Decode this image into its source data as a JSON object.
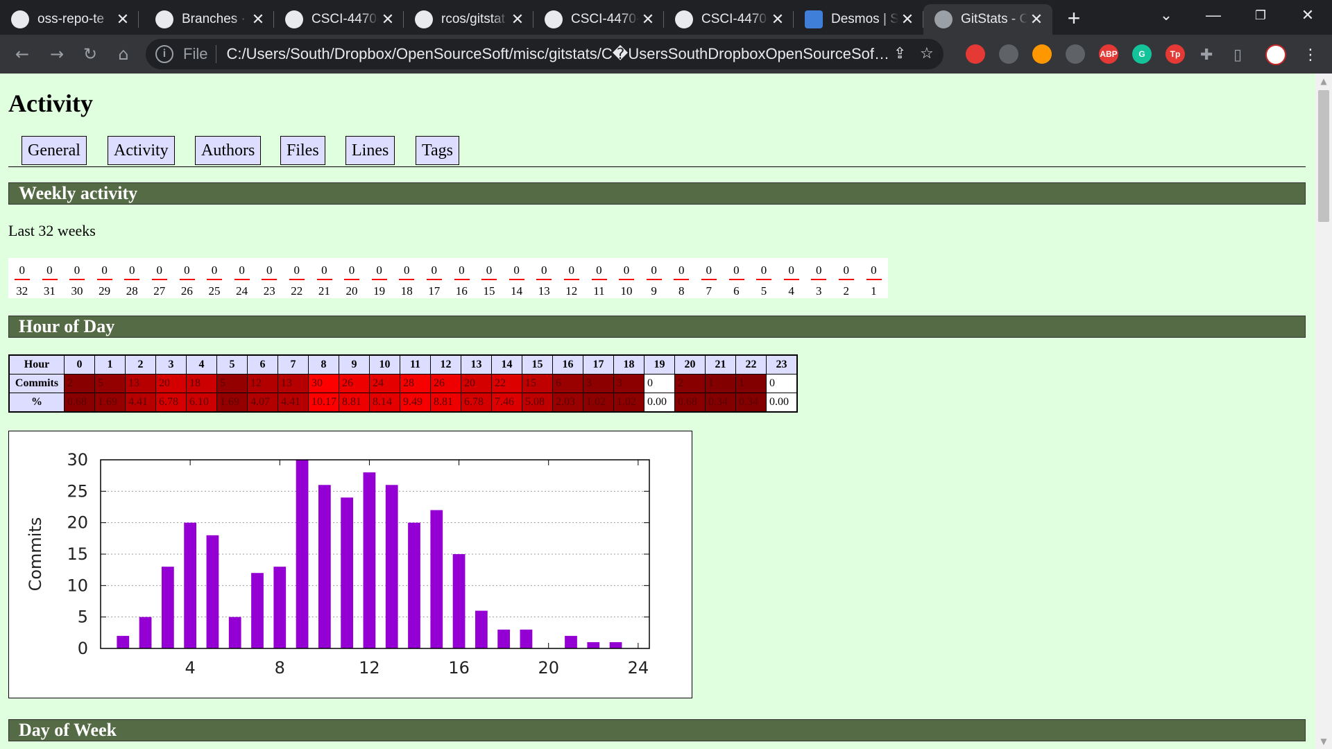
{
  "browser": {
    "tabs": [
      {
        "label": "oss-repo-te",
        "icon": "github-icon"
      },
      {
        "label": "Branches · t",
        "icon": "github-icon"
      },
      {
        "label": "CSCI-4470-",
        "icon": "github-icon"
      },
      {
        "label": "rcos/gitstat",
        "icon": "github-icon"
      },
      {
        "label": "CSCI-4470-",
        "icon": "github-icon"
      },
      {
        "label": "CSCI-4470-",
        "icon": "github-icon"
      },
      {
        "label": "Desmos | Sc",
        "icon": "desmos-icon"
      },
      {
        "label": "GitStats - C",
        "icon": "globe-icon",
        "active": true
      }
    ],
    "new_tab": "+",
    "address": {
      "scheme": "File",
      "url": "C:/Users/South/Dropbox/OpenSourceSoft/misc/gitstats/C�UsersSouthDropboxOpenSourceSoftmisc..."
    },
    "extensions": [
      {
        "name": "stop-extension-icon",
        "text": "",
        "color": "#e53935"
      },
      {
        "name": "graph-extension-icon",
        "text": "",
        "color": "#5f6368"
      },
      {
        "name": "orange-extension-icon",
        "text": "",
        "color": "#ff9800"
      },
      {
        "name": "dark-reader-icon",
        "text": "",
        "color": "#5f6368"
      },
      {
        "name": "adblock-icon",
        "text": "ABP",
        "color": "#e53935"
      },
      {
        "name": "grammarly-icon",
        "text": "G",
        "color": "#15c39a"
      },
      {
        "name": "tp-extension-icon",
        "text": "Tp",
        "color": "#e53935"
      }
    ]
  },
  "page": {
    "title": "Activity",
    "nav": [
      "General",
      "Activity",
      "Authors",
      "Files",
      "Lines",
      "Tags"
    ],
    "sections": {
      "weekly": "Weekly activity",
      "hour": "Hour of Day",
      "dow": "Day of Week"
    },
    "weekly_caption": "Last 32 weeks",
    "weekly_values": [
      "0",
      "0",
      "0",
      "0",
      "0",
      "0",
      "0",
      "0",
      "0",
      "0",
      "0",
      "0",
      "0",
      "0",
      "0",
      "0",
      "0",
      "0",
      "0",
      "0",
      "0",
      "0",
      "0",
      "0",
      "0",
      "0",
      "0",
      "0",
      "0",
      "0",
      "0",
      "0"
    ],
    "weekly_labels": [
      "32",
      "31",
      "30",
      "29",
      "28",
      "27",
      "26",
      "25",
      "24",
      "23",
      "22",
      "21",
      "20",
      "19",
      "18",
      "17",
      "16",
      "15",
      "14",
      "13",
      "12",
      "11",
      "10",
      "9",
      "8",
      "7",
      "6",
      "5",
      "4",
      "3",
      "2",
      "1"
    ],
    "hour_table": {
      "row_headers": [
        "Hour",
        "Commits",
        "%"
      ],
      "hours": [
        "0",
        "1",
        "2",
        "3",
        "4",
        "5",
        "6",
        "7",
        "8",
        "9",
        "10",
        "11",
        "12",
        "13",
        "14",
        "15",
        "16",
        "17",
        "18",
        "19",
        "20",
        "21",
        "22",
        "23"
      ],
      "commits": [
        "2",
        "5",
        "13",
        "20",
        "18",
        "5",
        "12",
        "13",
        "30",
        "26",
        "24",
        "28",
        "26",
        "20",
        "22",
        "15",
        "6",
        "3",
        "3",
        "0",
        "2",
        "1",
        "1",
        "0"
      ],
      "percent": [
        "0.68",
        "1.69",
        "4.41",
        "6.78",
        "6.10",
        "1.69",
        "4.07",
        "4.41",
        "10.17",
        "8.81",
        "8.14",
        "9.49",
        "8.81",
        "6.78",
        "7.46",
        "5.08",
        "2.03",
        "1.02",
        "1.02",
        "0.00",
        "0.68",
        "0.34",
        "0.34",
        "0.00"
      ]
    }
  },
  "chart_data": {
    "type": "bar",
    "title": "",
    "xlabel": "",
    "ylabel": "Commits",
    "x": [
      1,
      2,
      3,
      4,
      5,
      6,
      7,
      8,
      9,
      10,
      11,
      12,
      13,
      14,
      15,
      16,
      17,
      18,
      19,
      20,
      21,
      22,
      23,
      24
    ],
    "values": [
      2,
      5,
      13,
      20,
      18,
      5,
      12,
      13,
      30,
      26,
      24,
      28,
      26,
      20,
      22,
      15,
      6,
      3,
      3,
      0,
      2,
      1,
      1,
      0
    ],
    "xlim": [
      0,
      24.5
    ],
    "ylim": [
      0,
      30
    ],
    "xticks": [
      "4",
      "8",
      "12",
      "16",
      "20",
      "24"
    ],
    "yticks": [
      "0",
      "5",
      "10",
      "15",
      "20",
      "25",
      "30"
    ],
    "grid": "horizontal dotted",
    "bar_color": "#9400d3"
  }
}
